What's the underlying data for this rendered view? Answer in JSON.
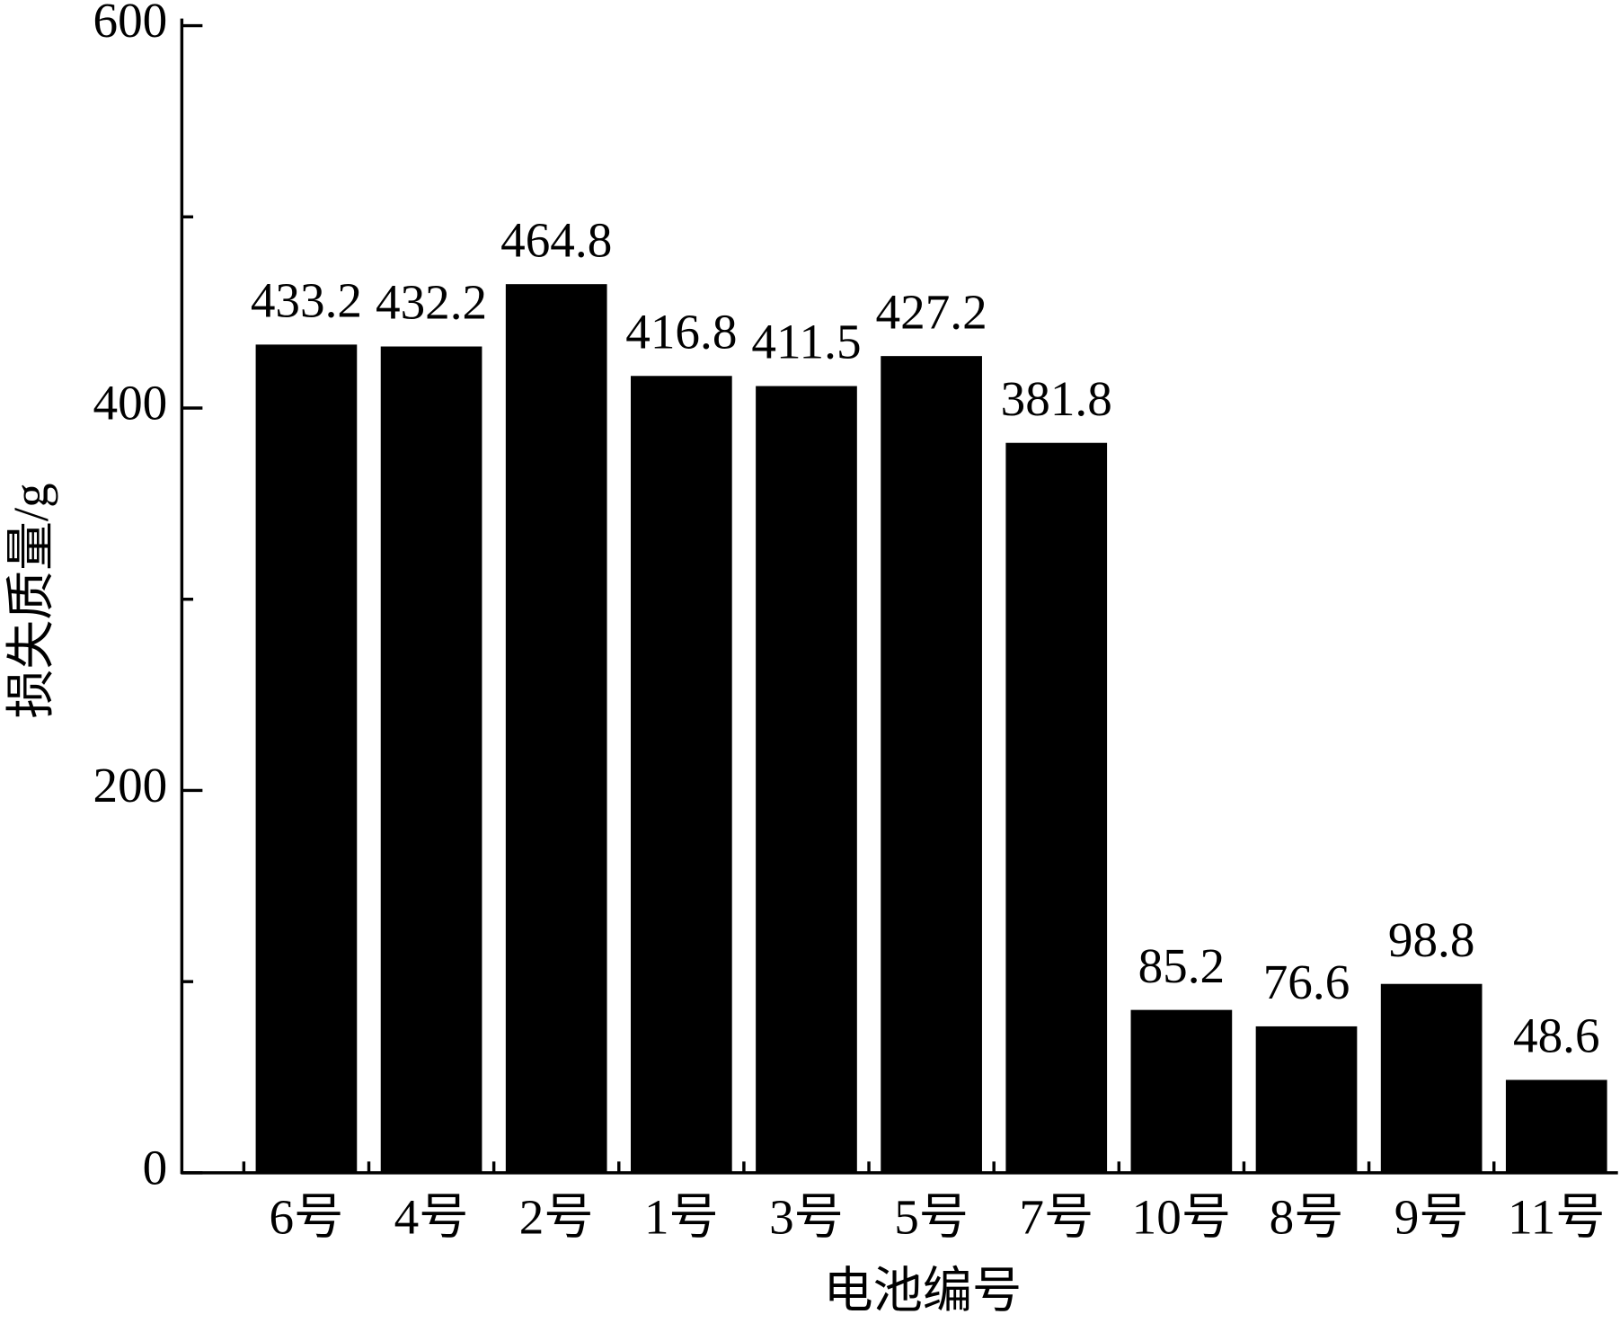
{
  "chart_data": {
    "type": "bar",
    "x_label": "电池编号",
    "y_label": "损失质量/g",
    "categories": [
      "6号",
      "4号",
      "2号",
      "1号",
      "3号",
      "5号",
      "7号",
      "10号",
      "8号",
      "9号",
      "11号"
    ],
    "values": [
      433.2,
      432.2,
      464.8,
      416.8,
      411.5,
      427.2,
      381.8,
      85.2,
      76.6,
      98.8,
      48.6
    ],
    "color": "#000000",
    "ylim": [
      0,
      600
    ],
    "yticks": [
      0,
      200,
      400,
      600
    ],
    "minor_yticks": [
      100,
      300,
      500
    ]
  }
}
